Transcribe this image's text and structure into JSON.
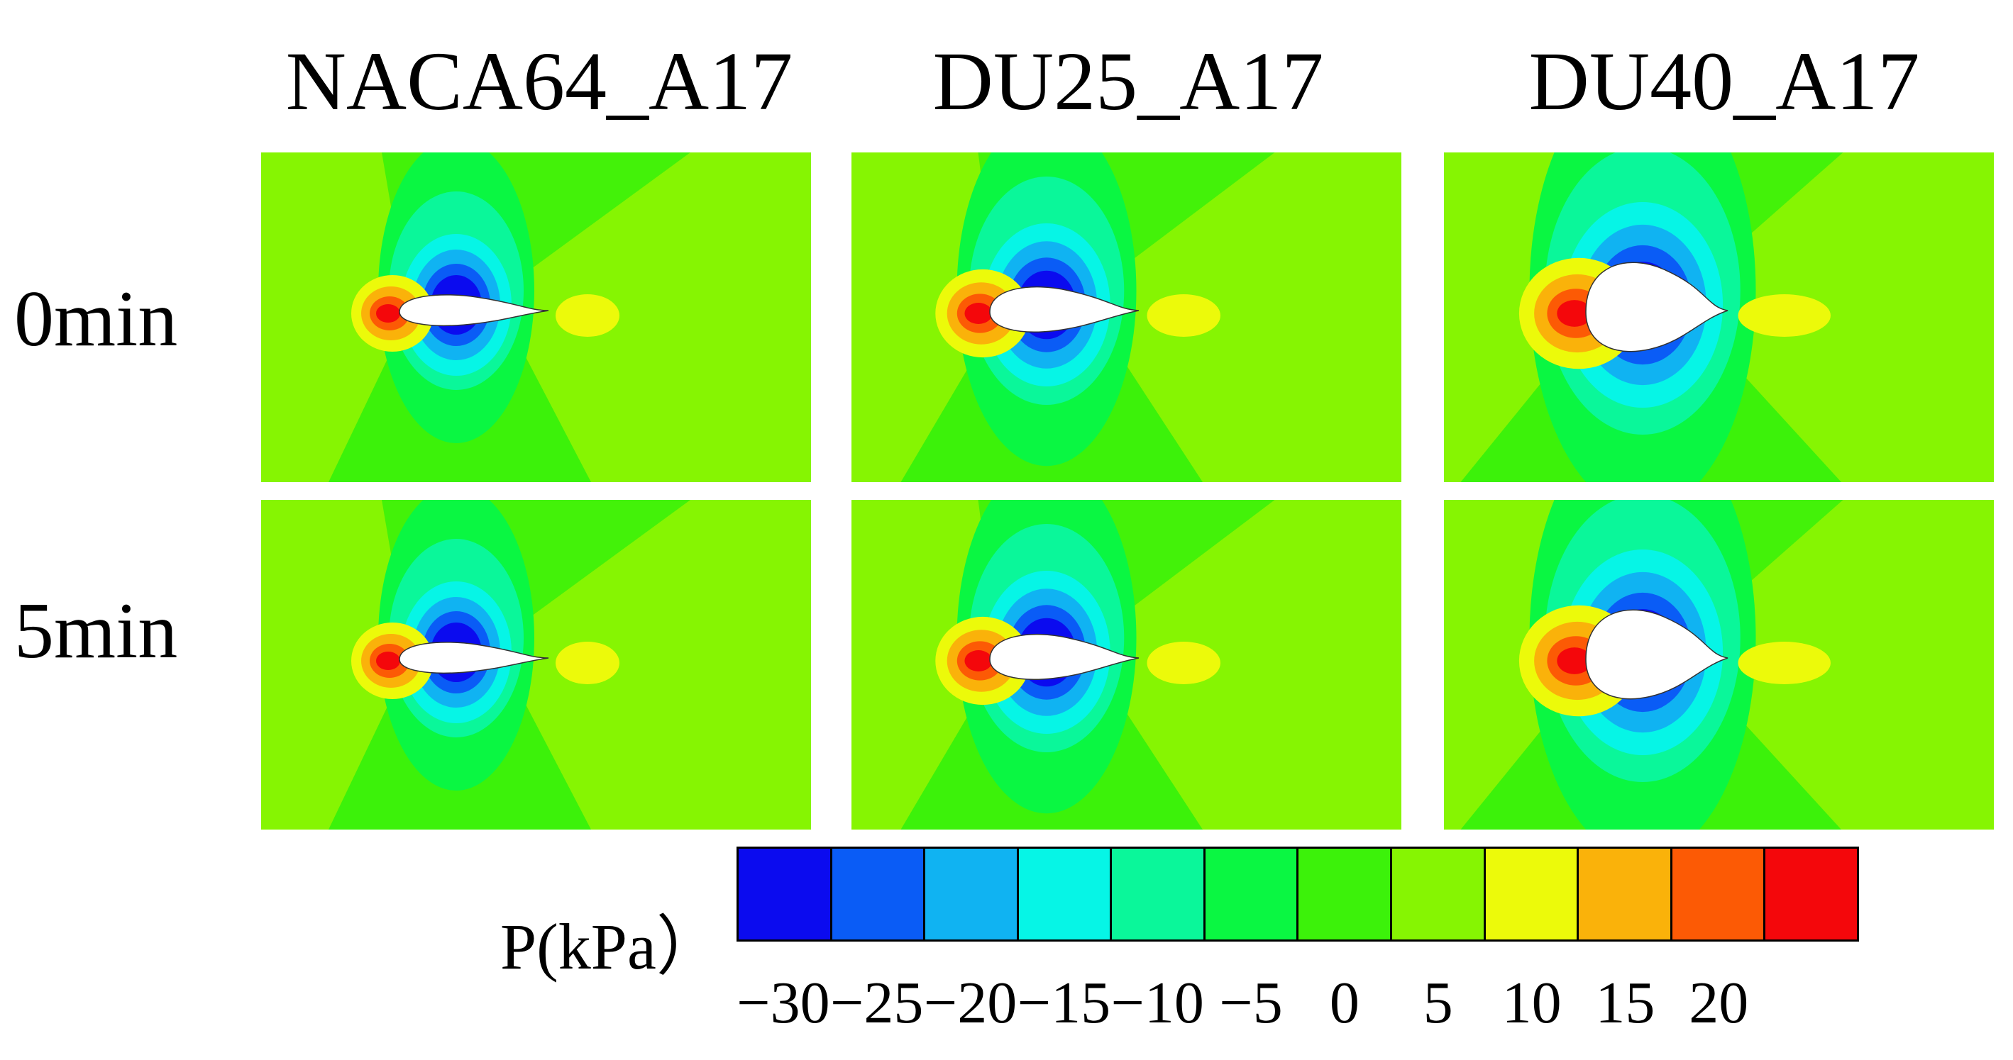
{
  "columns": [
    "NACA64_A17",
    "DU25_A17",
    "DU40_A17"
  ],
  "rows": [
    "0min",
    "5min"
  ],
  "legend": {
    "title": "P(kPa）",
    "levels": [
      {
        "value": "-30",
        "color": "#0b0bef"
      },
      {
        "value": "-25",
        "color": "#0a5cf6"
      },
      {
        "value": "-20",
        "color": "#10b3f2"
      },
      {
        "value": "-15",
        "color": "#06f5e6"
      },
      {
        "value": "-10",
        "color": "#0af79a"
      },
      {
        "value": "-5",
        "color": "#0af742"
      },
      {
        "value": "0",
        "color": "#3cf20a"
      },
      {
        "value": "5",
        "color": "#86f502"
      },
      {
        "value": "10",
        "color": "#ecfa0a"
      },
      {
        "value": "15",
        "color": "#fab20a"
      },
      {
        "value": "20",
        "color": "#fc5a05"
      },
      {
        "value": "",
        "color": "#f4070b"
      }
    ],
    "tick_labels": [
      "-30",
      "-25",
      "-20",
      "-15",
      "-10",
      "-5",
      "0",
      "5",
      "10",
      "15",
      "20"
    ]
  },
  "contour_colors": {
    "background": "#86f502",
    "zero_band": "#3cf20a",
    "minus5": "#0af742",
    "minus10": "#0af79a",
    "minus15": "#06f5e6",
    "minus20": "#10b3f2",
    "minus25": "#0a5cf6",
    "minus30": "#0b0bef",
    "plus10": "#ecfa0a",
    "plus15": "#fab20a",
    "plus20": "#fc5a05",
    "plus25": "#f4070b",
    "airfoil": "#ffffff"
  }
}
